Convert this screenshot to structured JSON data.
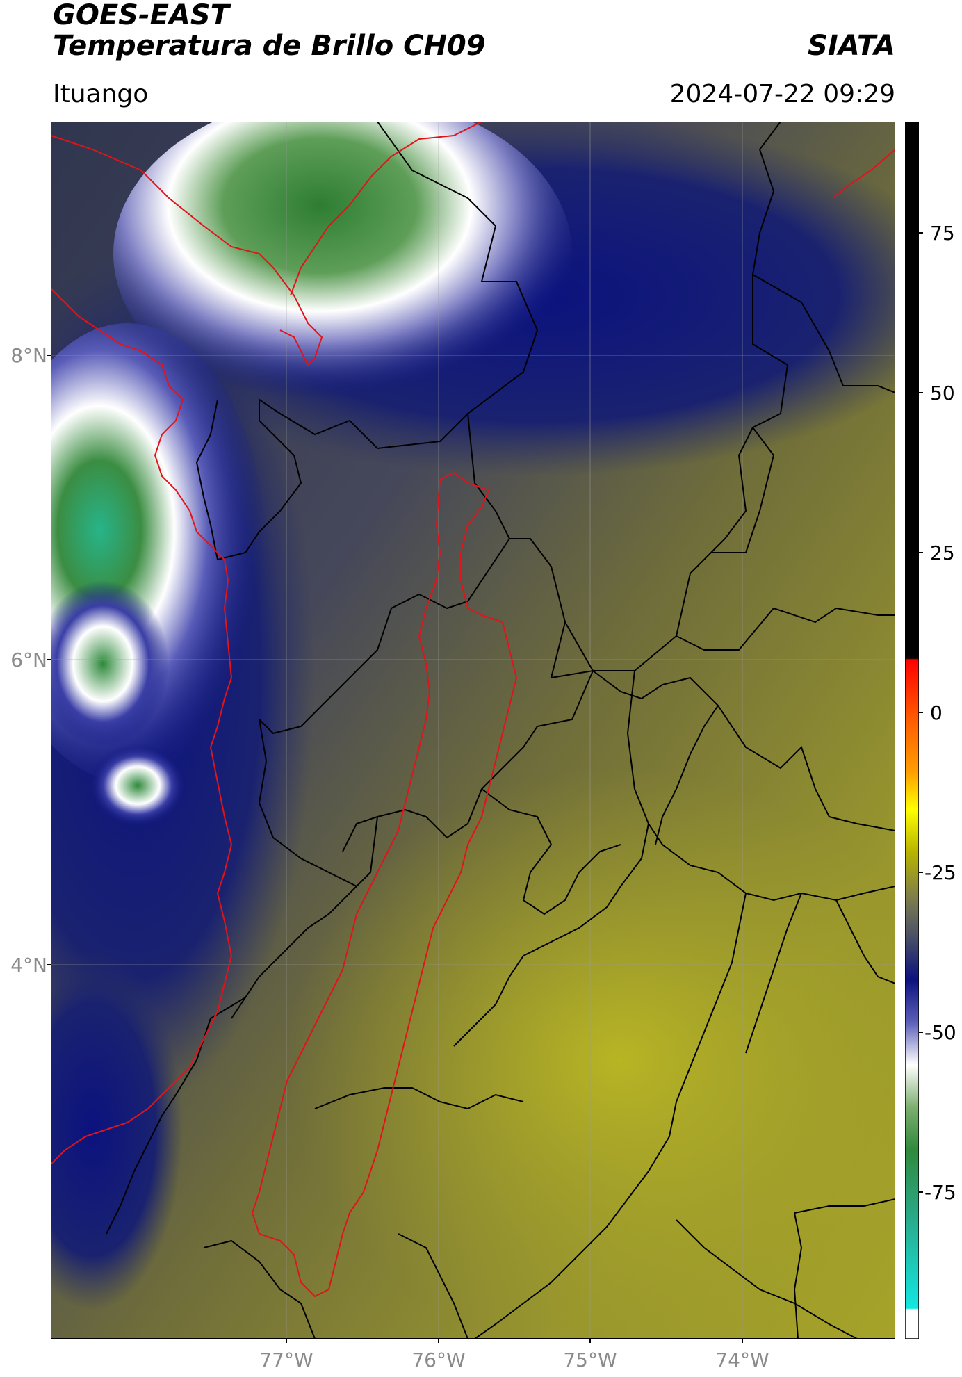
{
  "header": {
    "satellite": "GOES-EAST",
    "product": "Temperatura de Brillo CH09",
    "organization": "SIATA",
    "region": "Ituango",
    "datetime": "2024-07-22 09:29"
  },
  "map": {
    "lon_ticks": [
      "77°W",
      "76°W",
      "75°W",
      "74°W"
    ],
    "lat_ticks": [
      "8°N",
      "6°N",
      "4°N"
    ],
    "extent": {
      "lon_min": -78.55,
      "lon_max": -73.0,
      "lat_min": 1.0,
      "lat_max": 9.55
    },
    "grid": true,
    "features": [
      "coastline",
      "country-borders",
      "department-borders",
      "basin-outline"
    ]
  },
  "colorbar": {
    "unit_hint": "Temperatura de Brillo",
    "ticks": [
      "75",
      "50",
      "25",
      "0",
      "-25",
      "-50",
      "-75"
    ],
    "range": [
      -95,
      90
    ],
    "colors": {
      "hot": "#000000",
      "red": "#ff0000",
      "orange": "#ff8c00",
      "yellow": "#ffff00",
      "olive": "#a6a32a",
      "slate": "#4a4f66",
      "navy": "#0b127e",
      "white": "#ffffff",
      "green": "#2f8a3c",
      "teal": "#2ab98f",
      "cyan": "#12e7e2"
    }
  }
}
